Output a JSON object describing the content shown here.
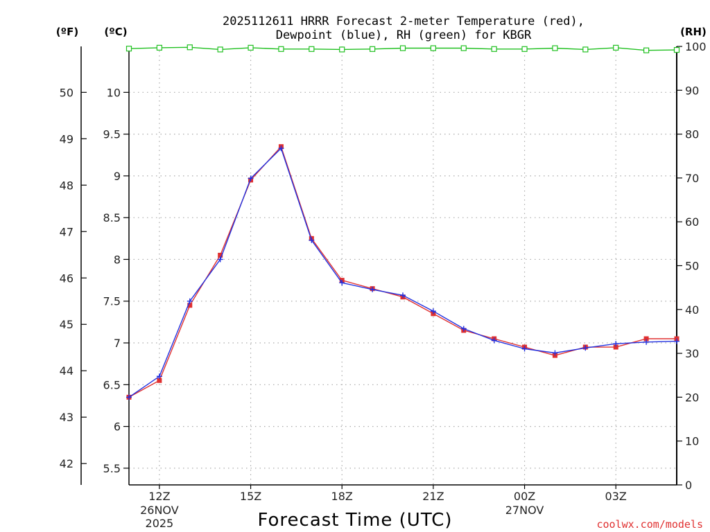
{
  "chart_data": {
    "type": "line",
    "title_line1": "2025112611 HRRR Forecast 2-meter Temperature (red),",
    "title_line2": "Dewpoint (blue), RH (green) for KBGR",
    "xlabel": "Forecast Time (UTC)",
    "credit": "coolwx.com/models",
    "units": {
      "fahrenheit": "(ºF)",
      "celsius": "(ºC)",
      "rh": "(RH)"
    },
    "x_hours": [
      11,
      12,
      13,
      14,
      15,
      16,
      17,
      18,
      19,
      20,
      21,
      22,
      23,
      24,
      25,
      26,
      27,
      28,
      29
    ],
    "x_ticks": [
      {
        "h": 12,
        "l1": "12Z",
        "l2": "26NOV",
        "l3": "2025"
      },
      {
        "h": 15,
        "l1": "15Z",
        "l2": "",
        "l3": ""
      },
      {
        "h": 18,
        "l1": "18Z",
        "l2": "",
        "l3": ""
      },
      {
        "h": 21,
        "l1": "21Z",
        "l2": "",
        "l3": ""
      },
      {
        "h": 24,
        "l1": "00Z",
        "l2": "27NOV",
        "l3": ""
      },
      {
        "h": 27,
        "l1": "03Z",
        "l2": "",
        "l3": ""
      }
    ],
    "xlim": [
      11,
      29
    ],
    "ylim_c": [
      5.3,
      10.55
    ],
    "yticks_c": [
      "5.5",
      "6",
      "6.5",
      "7",
      "7.5",
      "8",
      "8.5",
      "9",
      "9.5",
      "10"
    ],
    "yticks_f": [
      "42",
      "43",
      "44",
      "45",
      "46",
      "47",
      "48",
      "49",
      "50"
    ],
    "ylim_rh": [
      0,
      100
    ],
    "yticks_rh": [
      "0",
      "10",
      "20",
      "30",
      "40",
      "50",
      "60",
      "70",
      "80",
      "90",
      "100"
    ],
    "series": [
      {
        "name": "Temperature",
        "color": "#e03030",
        "marker": "square",
        "values": [
          6.35,
          6.55,
          7.45,
          8.05,
          8.95,
          9.35,
          8.25,
          7.75,
          7.65,
          7.55,
          7.35,
          7.15,
          7.05,
          6.95,
          6.85,
          6.95,
          6.95,
          7.05,
          7.05
        ]
      },
      {
        "name": "Dewpoint",
        "color": "#2030e0",
        "marker": "plus",
        "values": [
          6.35,
          6.6,
          7.5,
          8.0,
          8.97,
          9.33,
          8.23,
          7.72,
          7.64,
          7.57,
          7.38,
          7.17,
          7.03,
          6.93,
          6.88,
          6.94,
          6.99,
          7.01,
          7.02
        ]
      },
      {
        "name": "RH",
        "color": "#20c020",
        "marker": "open-square",
        "axis": "rh",
        "values": [
          99.5,
          99.7,
          99.8,
          99.3,
          99.7,
          99.4,
          99.4,
          99.3,
          99.4,
          99.6,
          99.6,
          99.6,
          99.4,
          99.4,
          99.6,
          99.3,
          99.7,
          99.1,
          99.2
        ]
      }
    ]
  }
}
